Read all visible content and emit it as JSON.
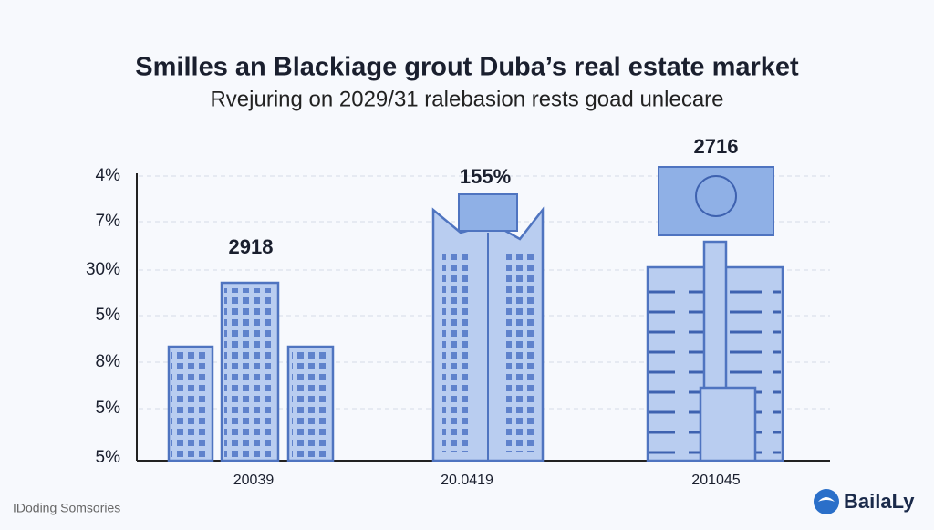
{
  "header": {
    "title": "Smilles an Blackiage grout Duba’s real estate market",
    "subtitle": "Rvejuring on 2029/31 ralebasion rests goad unlecare"
  },
  "axis": {
    "labels": [
      "4%",
      "7%",
      "30%",
      "5%",
      "8%",
      "5%",
      "5%"
    ]
  },
  "groups": [
    {
      "label": "20039",
      "value_label": "2918"
    },
    {
      "label": "20.0419",
      "value_label": "155%"
    },
    {
      "label": "201045",
      "value_label": "2716"
    }
  ],
  "footer": {
    "source": "IDoding Somsories",
    "brand": "BailaLy"
  }
}
